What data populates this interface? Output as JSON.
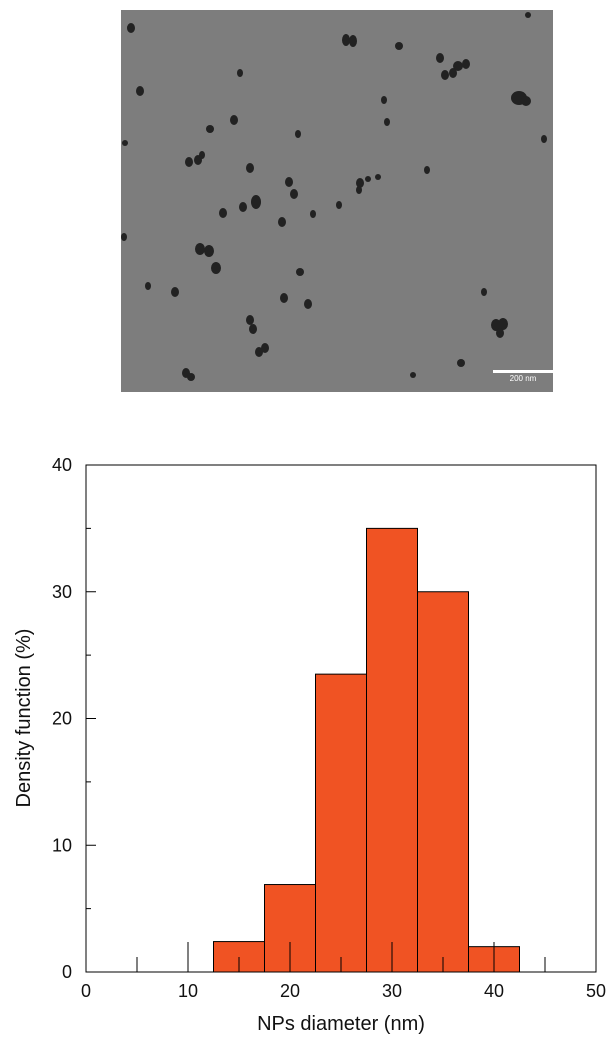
{
  "image": {
    "scale_label": "200 nm"
  },
  "chart_data": {
    "type": "histogram",
    "xlabel": "NPs diameter (nm)",
    "ylabel": "Density function (%)",
    "bins": [
      12.5,
      17.5,
      22.5,
      27.5,
      32.5,
      37.5,
      42.5
    ],
    "values": [
      2.4,
      6.9,
      23.5,
      35,
      30,
      2.0
    ],
    "color": "#f05323",
    "xlim": [
      0,
      50
    ],
    "xticks": [
      0,
      10,
      20,
      30,
      40,
      50
    ],
    "xminorticks": [
      5,
      15,
      25,
      35,
      45
    ],
    "ylim": [
      0,
      40
    ],
    "yticks": [
      0,
      10,
      20,
      30,
      40
    ],
    "yminorticks": [
      5,
      15,
      25,
      35
    ]
  }
}
